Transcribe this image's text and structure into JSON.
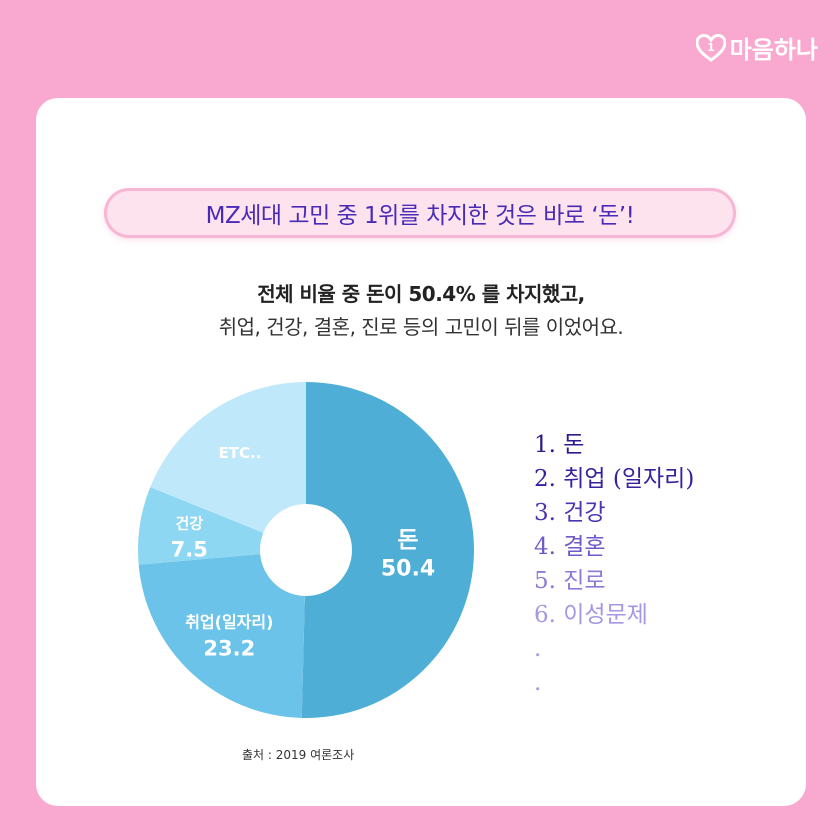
{
  "brand": {
    "name": "마음하나"
  },
  "headline": "MZ세대 고민 중 1위를 차지한 것은 바로 ‘돈’!",
  "summary": {
    "line1": "전체 비율 중 돈이 50.4% 를 차지했고,",
    "line2": "취업, 건강, 결혼, 진로 등의 고민이 뒤를 이었어요."
  },
  "chart_data": {
    "type": "pie",
    "categories": [
      "돈",
      "취업(일자리)",
      "건강",
      "ETC.."
    ],
    "values": [
      50.4,
      23.2,
      7.5,
      null
    ],
    "labels": [
      {
        "name": "돈",
        "value": "50.4"
      },
      {
        "name": "취업(일자리)",
        "value": "23.2"
      },
      {
        "name": "건강",
        "value": "7.5"
      },
      {
        "name": "ETC..",
        "value": ""
      }
    ],
    "colors": [
      "#4faed6",
      "#6cc3e9",
      "#8dd7f3",
      "#bfe9fb"
    ]
  },
  "ranking": [
    {
      "text": "1. 돈",
      "color": "#2e1a8c"
    },
    {
      "text": "2. 취업 (일자리)",
      "color": "#3a1f9e"
    },
    {
      "text": "3. 건강",
      "color": "#4f33b3"
    },
    {
      "text": "4. 결혼",
      "color": "#6f58c9"
    },
    {
      "text": "5. 진로",
      "color": "#8f7ad8"
    },
    {
      "text": "6. 이성문제",
      "color": "#a597e2"
    },
    {
      "text": ".",
      "color": "#a597e2"
    },
    {
      "text": ".",
      "color": "#a597e2"
    }
  ],
  "source": "출처 : 2019 여론조사"
}
